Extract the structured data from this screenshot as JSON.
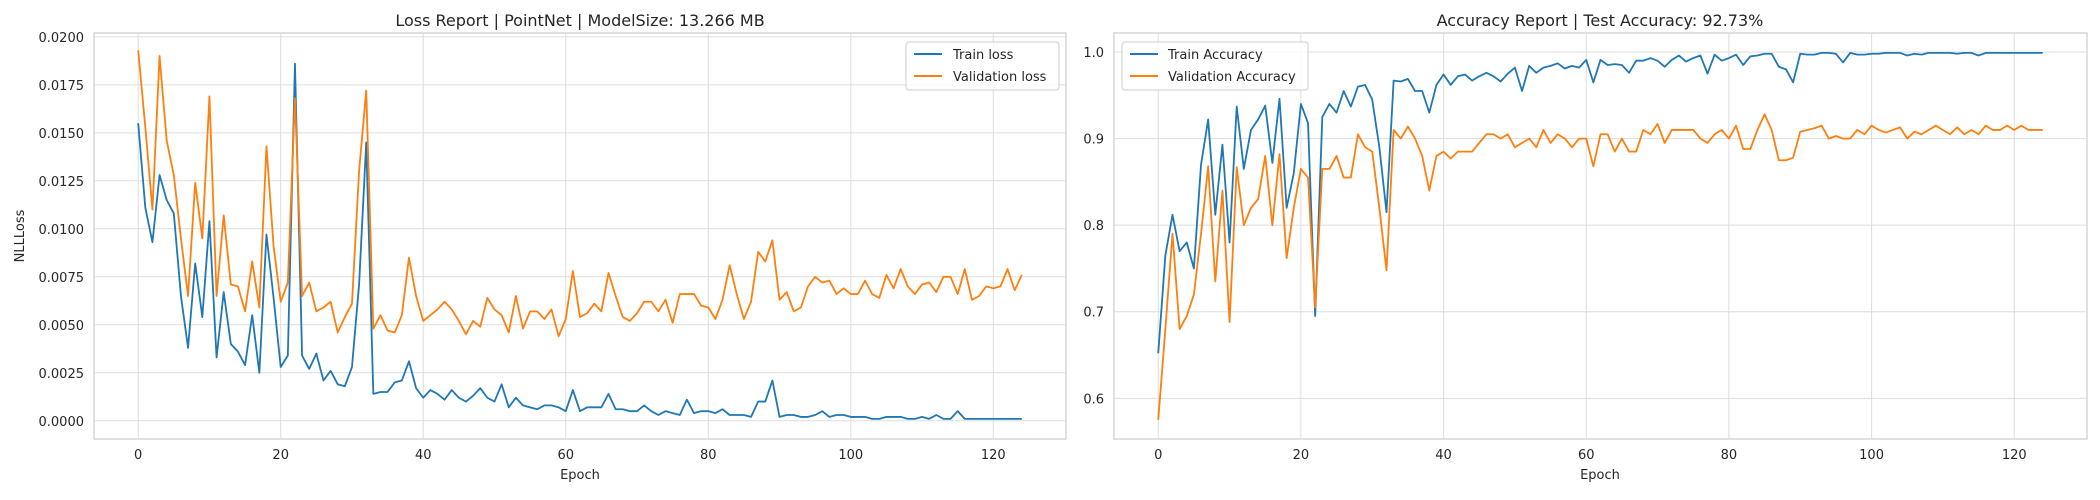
{
  "chart_data": [
    {
      "type": "line",
      "title": "Loss Report | PointNet | ModelSize: 13.266 MB",
      "xlabel": "Epoch",
      "ylabel": "NLLLoss",
      "xlim": [
        -6.2,
        130.2
      ],
      "ylim": [
        -0.00095,
        0.0202
      ],
      "xticks": [
        0,
        20,
        40,
        60,
        80,
        100,
        120
      ],
      "yticks": [
        0.0,
        0.0025,
        0.005,
        0.0075,
        0.01,
        0.0125,
        0.015,
        0.0175,
        0.02
      ],
      "ytick_labels": [
        "0.0000",
        "0.0025",
        "0.0050",
        "0.0075",
        "0.0100",
        "0.0125",
        "0.0150",
        "0.0175",
        "0.0200"
      ],
      "grid": true,
      "legend_position": "top-right",
      "series": [
        {
          "name": "Train loss",
          "color": "#1f77b4",
          "values": [
            0.0155,
            0.0111,
            0.0093,
            0.0128,
            0.0115,
            0.0108,
            0.0065,
            0.0038,
            0.0082,
            0.0054,
            0.0104,
            0.0033,
            0.0067,
            0.004,
            0.0036,
            0.0029,
            0.0055,
            0.0025,
            0.0097,
            0.0064,
            0.0028,
            0.0034,
            0.0186,
            0.0034,
            0.0027,
            0.0035,
            0.0021,
            0.0026,
            0.0019,
            0.0018,
            0.0028,
            0.0071,
            0.0145,
            0.0014,
            0.0015,
            0.0015,
            0.002,
            0.0021,
            0.0031,
            0.0017,
            0.0012,
            0.0016,
            0.0014,
            0.0011,
            0.0016,
            0.0012,
            0.001,
            0.0013,
            0.0017,
            0.0012,
            0.001,
            0.0019,
            0.0007,
            0.0012,
            0.0008,
            0.0007,
            0.0006,
            0.0008,
            0.0008,
            0.0007,
            0.0005,
            0.0016,
            0.0005,
            0.0007,
            0.0007,
            0.0007,
            0.0014,
            0.0006,
            0.0006,
            0.0005,
            0.0005,
            0.0008,
            0.0005,
            0.0003,
            0.0005,
            0.0004,
            0.0003,
            0.0011,
            0.0004,
            0.0005,
            0.0005,
            0.0004,
            0.0006,
            0.0003,
            0.0003,
            0.0003,
            0.0002,
            0.001,
            0.001,
            0.0021,
            0.0002,
            0.0003,
            0.0003,
            0.0002,
            0.0002,
            0.0003,
            0.0005,
            0.0002,
            0.0003,
            0.0003,
            0.0002,
            0.0002,
            0.0002,
            0.0001,
            0.0001,
            0.0002,
            0.0002,
            0.0002,
            0.0001,
            0.0001,
            0.0002,
            0.0001,
            0.0003,
            0.0001,
            0.0001,
            0.0005,
            0.0001,
            0.0001,
            0.0001,
            0.0001,
            0.0001,
            0.0001,
            0.0001,
            0.0001,
            0.0001
          ]
        },
        {
          "name": "Validation loss",
          "color": "#ff7f0e",
          "values": [
            0.0193,
            0.0153,
            0.011,
            0.019,
            0.0146,
            0.0128,
            0.0095,
            0.0065,
            0.0124,
            0.0095,
            0.0169,
            0.0065,
            0.0107,
            0.0071,
            0.007,
            0.0057,
            0.0083,
            0.0059,
            0.0143,
            0.0091,
            0.0062,
            0.0072,
            0.0168,
            0.0065,
            0.0072,
            0.0057,
            0.0059,
            0.0062,
            0.0046,
            0.0054,
            0.0061,
            0.013,
            0.0172,
            0.0048,
            0.0055,
            0.0047,
            0.0046,
            0.0055,
            0.0085,
            0.0065,
            0.0052,
            0.0055,
            0.0058,
            0.0062,
            0.0058,
            0.0052,
            0.0045,
            0.0052,
            0.0049,
            0.0064,
            0.0058,
            0.0055,
            0.0046,
            0.0065,
            0.0048,
            0.0057,
            0.0057,
            0.0053,
            0.0058,
            0.0044,
            0.0053,
            0.0078,
            0.0054,
            0.0056,
            0.0061,
            0.0057,
            0.0077,
            0.0065,
            0.0054,
            0.0052,
            0.0056,
            0.0062,
            0.0062,
            0.0057,
            0.0063,
            0.0051,
            0.0066,
            0.0066,
            0.0066,
            0.006,
            0.0059,
            0.0053,
            0.0063,
            0.0081,
            0.0066,
            0.0053,
            0.0062,
            0.0088,
            0.0083,
            0.0094,
            0.0063,
            0.0067,
            0.0057,
            0.0059,
            0.007,
            0.0075,
            0.0072,
            0.0073,
            0.0066,
            0.0069,
            0.0066,
            0.0066,
            0.0073,
            0.0066,
            0.0064,
            0.0076,
            0.0069,
            0.0079,
            0.007,
            0.0066,
            0.0071,
            0.0072,
            0.0067,
            0.0075,
            0.0075,
            0.0066,
            0.0079,
            0.0063,
            0.0065,
            0.007,
            0.0069,
            0.007,
            0.0079,
            0.0068,
            0.0076
          ]
        }
      ]
    },
    {
      "type": "line",
      "title": "Accuracy Report | Test Accuracy: 92.73%",
      "xlabel": "Epoch",
      "ylabel": "",
      "xlim": [
        -6.2,
        130.2
      ],
      "ylim": [
        0.553,
        1.022
      ],
      "xticks": [
        0,
        20,
        40,
        60,
        80,
        100,
        120
      ],
      "yticks": [
        0.6,
        0.7,
        0.8,
        0.9,
        1.0
      ],
      "ytick_labels": [
        "0.6",
        "0.7",
        "0.8",
        "0.9",
        "1.0"
      ],
      "grid": true,
      "legend_position": "top-left",
      "series": [
        {
          "name": "Train Accuracy",
          "color": "#1f77b4",
          "values": [
            0.652,
            0.765,
            0.812,
            0.77,
            0.78,
            0.75,
            0.87,
            0.922,
            0.812,
            0.893,
            0.78,
            0.937,
            0.865,
            0.91,
            0.922,
            0.938,
            0.872,
            0.946,
            0.82,
            0.86,
            0.94,
            0.918,
            0.695,
            0.925,
            0.94,
            0.93,
            0.955,
            0.937,
            0.96,
            0.962,
            0.945,
            0.89,
            0.815,
            0.967,
            0.966,
            0.969,
            0.955,
            0.955,
            0.93,
            0.962,
            0.974,
            0.962,
            0.972,
            0.974,
            0.967,
            0.972,
            0.976,
            0.972,
            0.966,
            0.975,
            0.982,
            0.955,
            0.984,
            0.976,
            0.982,
            0.984,
            0.987,
            0.981,
            0.984,
            0.982,
            0.991,
            0.965,
            0.991,
            0.985,
            0.986,
            0.985,
            0.976,
            0.99,
            0.99,
            0.993,
            0.99,
            0.983,
            0.991,
            0.996,
            0.989,
            0.993,
            0.996,
            0.975,
            0.997,
            0.99,
            0.993,
            0.997,
            0.985,
            0.995,
            0.996,
            0.998,
            0.998,
            0.983,
            0.98,
            0.965,
            0.998,
            0.997,
            0.997,
            0.999,
            0.999,
            0.998,
            0.988,
            0.999,
            0.997,
            0.997,
            0.998,
            0.998,
            0.999,
            0.999,
            0.999,
            0.996,
            0.998,
            0.997,
            0.999,
            0.999,
            0.999,
            0.999,
            0.998,
            0.999,
            0.999,
            0.996,
            0.999,
            0.999,
            0.999,
            0.999,
            0.999,
            0.999,
            0.999,
            0.999,
            0.999
          ]
        },
        {
          "name": "Validation Accuracy",
          "color": "#ff7f0e",
          "values": [
            0.575,
            0.68,
            0.79,
            0.68,
            0.695,
            0.72,
            0.79,
            0.868,
            0.735,
            0.84,
            0.688,
            0.867,
            0.8,
            0.82,
            0.83,
            0.88,
            0.8,
            0.882,
            0.762,
            0.82,
            0.865,
            0.855,
            0.705,
            0.865,
            0.865,
            0.88,
            0.855,
            0.855,
            0.905,
            0.89,
            0.885,
            0.82,
            0.748,
            0.91,
            0.9,
            0.914,
            0.9,
            0.88,
            0.84,
            0.88,
            0.885,
            0.877,
            0.885,
            0.885,
            0.885,
            0.895,
            0.905,
            0.905,
            0.9,
            0.905,
            0.89,
            0.895,
            0.9,
            0.89,
            0.91,
            0.895,
            0.905,
            0.9,
            0.89,
            0.9,
            0.9,
            0.868,
            0.905,
            0.905,
            0.885,
            0.9,
            0.885,
            0.885,
            0.91,
            0.905,
            0.917,
            0.895,
            0.91,
            0.91,
            0.91,
            0.91,
            0.9,
            0.895,
            0.905,
            0.91,
            0.9,
            0.915,
            0.888,
            0.888,
            0.91,
            0.928,
            0.91,
            0.875,
            0.875,
            0.878,
            0.908,
            0.91,
            0.912,
            0.915,
            0.9,
            0.903,
            0.9,
            0.9,
            0.91,
            0.905,
            0.915,
            0.91,
            0.907,
            0.91,
            0.913,
            0.9,
            0.908,
            0.905,
            0.91,
            0.915,
            0.91,
            0.905,
            0.913,
            0.905,
            0.91,
            0.905,
            0.915,
            0.91,
            0.91,
            0.915,
            0.91,
            0.915,
            0.91,
            0.91,
            0.91
          ]
        }
      ]
    }
  ]
}
